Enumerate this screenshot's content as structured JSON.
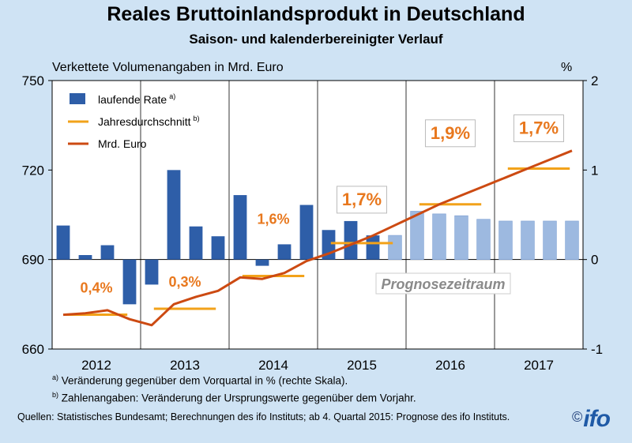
{
  "header": {
    "title": "Reales Bruttoinlandsprodukt  in Deutschland",
    "subtitle": "Saison- und kalenderbereinigter Verlauf",
    "left_unit": "Verkettete Volumenangaben  in Mrd. Euro",
    "right_unit": "%"
  },
  "chart_data": {
    "type": "bar",
    "left_axis": {
      "ylim": [
        660,
        750
      ],
      "ticks": [
        "660",
        "690",
        "720",
        "750"
      ]
    },
    "right_axis": {
      "ylim": [
        -1,
        2
      ],
      "ticks": [
        "-1",
        "0",
        "1",
        "2"
      ]
    },
    "years": [
      "2012",
      "2013",
      "2014",
      "2015",
      "2016",
      "2017"
    ],
    "quarters_per_year": 4,
    "grid": "vertical year separators",
    "prognosis_start_index": 15,
    "prognosis_label": "Prognosezeitraum",
    "legend": {
      "placement": "top-left",
      "entries": [
        {
          "name": "laufende Rate",
          "mark": "a)"
        },
        {
          "name": "Jahresdurchschnitt",
          "mark": "b)"
        },
        {
          "name": "Mrd. Euro",
          "mark": ""
        }
      ]
    },
    "colors": {
      "bar": "#2e5ea8",
      "bar_prognosis": "#9db9e0",
      "annual": "#f2a21a",
      "line": "#cc4a12",
      "label": "#e8781e"
    },
    "series": [
      {
        "name": "laufende Rate",
        "axis": "right",
        "values": [
          0.38,
          0.05,
          0.16,
          -0.5,
          -0.28,
          1.0,
          0.37,
          0.26,
          0.72,
          -0.07,
          0.17,
          0.61,
          0.33,
          0.43,
          0.27,
          0.27,
          0.54,
          0.51,
          0.49,
          0.45,
          0.43,
          0.43,
          0.43,
          0.43
        ]
      },
      {
        "name": "Mrd. Euro",
        "axis": "left",
        "values": [
          671.5,
          672,
          673,
          670,
          668,
          675,
          677.5,
          679.5,
          684,
          683.5,
          685.5,
          689.5,
          692,
          695,
          698,
          701.5,
          705,
          708.5,
          711.5,
          714.5,
          717.5,
          720.5,
          723.5,
          726.5
        ]
      },
      {
        "name": "Jahresdurchschnitt",
        "axis": "left",
        "values": [
          671.5,
          673.5,
          684.5,
          695.5,
          708.5,
          720.5
        ]
      }
    ],
    "annual_labels": [
      "0,4%",
      "0,3%",
      "1,6%",
      "1,7%",
      "1,9%",
      "1,7%"
    ]
  },
  "footnotes": {
    "a": "Veränderung gegenüber dem Vorquartal in % (rechte Skala).",
    "b": "Zahlenangaben: Veränderung der Ursprungswerte gegenüber dem Vorjahr.",
    "a_mark": "a)",
    "b_mark": "b)"
  },
  "source": "Quellen:  Statistisches  Bundesamt;  Berechnungen  des  ifo Instituts;  ab 4.  Quartal 2015:  Prognose  des  ifo Instituts.",
  "logo": {
    "copyright": "©",
    "text": "ifo"
  }
}
